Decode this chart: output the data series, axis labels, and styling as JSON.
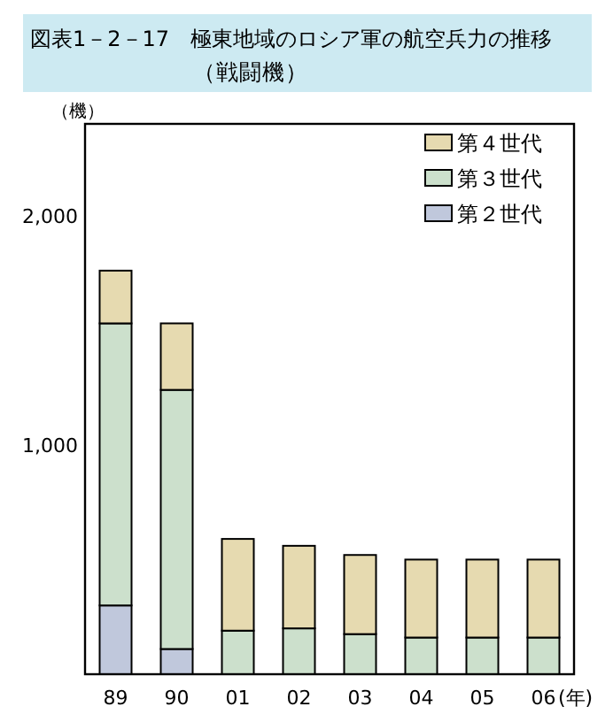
{
  "chart_data": {
    "type": "bar",
    "title": "図表1－2－17　極東地域のロシア軍の航空兵力の推移",
    "subtitle": "（戦闘機）",
    "ylabel": "（機）",
    "xlabel": "(年)",
    "categories": [
      "89",
      "90",
      "01",
      "02",
      "03",
      "04",
      "05",
      "06"
    ],
    "stacked": true,
    "series": [
      {
        "name": "第２世代",
        "color": "#c0c8dc",
        "values": [
          300,
          110,
          0,
          0,
          0,
          0,
          0,
          0
        ]
      },
      {
        "name": "第３世代",
        "color": "#cce0cc",
        "values": [
          1230,
          1130,
          190,
          200,
          175,
          160,
          160,
          160
        ]
      },
      {
        "name": "第４世代",
        "color": "#e6dab0",
        "values": [
          230,
          290,
          400,
          360,
          345,
          340,
          340,
          340
        ]
      }
    ],
    "ylim": [
      0,
      2400
    ],
    "yticks": [
      {
        "value": 1000,
        "label": "1,000"
      },
      {
        "value": 2000,
        "label": "2,000"
      }
    ],
    "legend": "top right"
  }
}
